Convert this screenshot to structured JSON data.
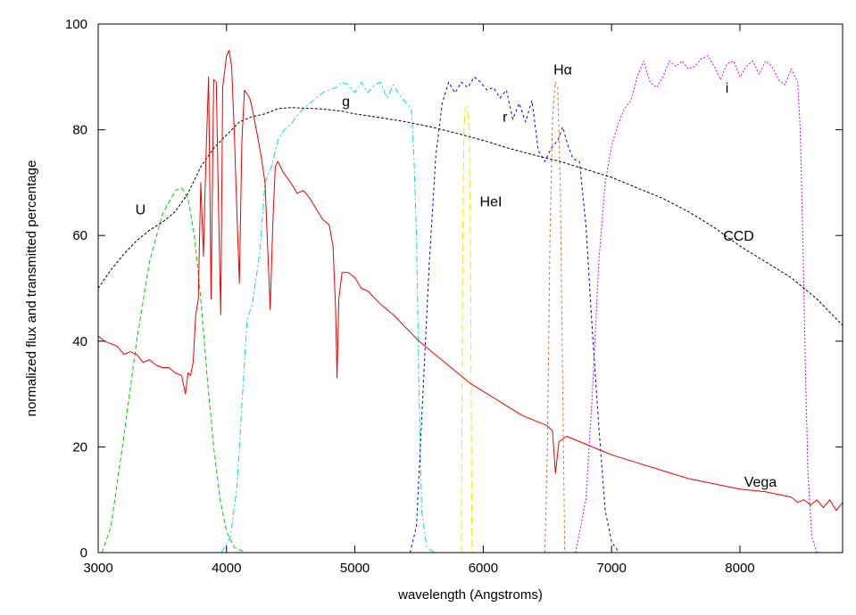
{
  "chart_data": {
    "type": "line",
    "title": "",
    "xlabel": "wavelength (Angstroms)",
    "ylabel": "normalized flux and transmitted percentage",
    "xlim": [
      3000,
      8800
    ],
    "ylim": [
      0,
      100
    ],
    "xticks": [
      3000,
      4000,
      5000,
      6000,
      7000,
      8000
    ],
    "yticks": [
      0,
      20,
      40,
      60,
      80,
      100
    ],
    "grid": false,
    "series": [
      {
        "name": "U",
        "label": "U",
        "color": "#00cc00",
        "dash": "5,3",
        "label_at": [
          3330,
          64
        ],
        "points": [
          [
            3030,
            0
          ],
          [
            3100,
            5
          ],
          [
            3200,
            22
          ],
          [
            3300,
            40
          ],
          [
            3400,
            55
          ],
          [
            3500,
            64
          ],
          [
            3600,
            68.5
          ],
          [
            3650,
            69
          ],
          [
            3700,
            67
          ],
          [
            3750,
            60
          ],
          [
            3800,
            48
          ],
          [
            3850,
            33
          ],
          [
            3900,
            20
          ],
          [
            3950,
            10
          ],
          [
            4000,
            4
          ],
          [
            4060,
            1
          ],
          [
            4150,
            0
          ]
        ]
      },
      {
        "name": "g",
        "label": "g",
        "color": "#00dddd",
        "dash": "7,3,2,3",
        "label_at": [
          4930,
          84.5
        ],
        "points": [
          [
            3960,
            0
          ],
          [
            4030,
            3
          ],
          [
            4080,
            12
          ],
          [
            4120,
            28
          ],
          [
            4160,
            44
          ],
          [
            4200,
            47
          ],
          [
            4260,
            57
          ],
          [
            4300,
            70
          ],
          [
            4350,
            73
          ],
          [
            4400,
            78
          ],
          [
            4450,
            80
          ],
          [
            4500,
            81
          ],
          [
            4560,
            83
          ],
          [
            4600,
            84
          ],
          [
            4650,
            85
          ],
          [
            4700,
            86
          ],
          [
            4750,
            87
          ],
          [
            4800,
            87.5
          ],
          [
            4850,
            88
          ],
          [
            4900,
            89
          ],
          [
            4950,
            88.5
          ],
          [
            5000,
            87
          ],
          [
            5050,
            89
          ],
          [
            5100,
            87
          ],
          [
            5150,
            88.5
          ],
          [
            5200,
            89
          ],
          [
            5250,
            86
          ],
          [
            5300,
            88.5
          ],
          [
            5350,
            86.5
          ],
          [
            5400,
            85
          ],
          [
            5440,
            84
          ],
          [
            5460,
            75
          ],
          [
            5480,
            60
          ],
          [
            5500,
            30
          ],
          [
            5520,
            8
          ],
          [
            5560,
            1
          ],
          [
            5620,
            0
          ]
        ]
      },
      {
        "name": "HeI",
        "label": "HeI",
        "color": "#eeee00",
        "dash": "9,4",
        "label_at": [
          6060,
          65.5
        ],
        "points": [
          [
            5830,
            0
          ],
          [
            5840,
            60
          ],
          [
            5850,
            80
          ],
          [
            5860,
            84
          ],
          [
            5875,
            84.5
          ],
          [
            5890,
            80
          ],
          [
            5900,
            60
          ],
          [
            5912,
            0
          ]
        ]
      },
      {
        "name": "r",
        "label": "r",
        "color": "#0000cc",
        "dash": "3,3",
        "label_at": [
          6170,
          81.5
        ],
        "points": [
          [
            5430,
            0
          ],
          [
            5480,
            5
          ],
          [
            5530,
            30
          ],
          [
            5580,
            55
          ],
          [
            5630,
            75
          ],
          [
            5680,
            85
          ],
          [
            5730,
            89
          ],
          [
            5780,
            87
          ],
          [
            5830,
            89
          ],
          [
            5880,
            88
          ],
          [
            5930,
            90
          ],
          [
            5980,
            89
          ],
          [
            6030,
            87.5
          ],
          [
            6080,
            88
          ],
          [
            6130,
            86
          ],
          [
            6180,
            87.5
          ],
          [
            6230,
            82
          ],
          [
            6280,
            85
          ],
          [
            6330,
            81.5
          ],
          [
            6380,
            85.5
          ],
          [
            6430,
            76
          ],
          [
            6480,
            74
          ],
          [
            6530,
            76.5
          ],
          [
            6580,
            78
          ],
          [
            6620,
            80.5
          ],
          [
            6660,
            77
          ],
          [
            6700,
            74.5
          ],
          [
            6750,
            74
          ],
          [
            6800,
            62
          ],
          [
            6850,
            42
          ],
          [
            6900,
            24
          ],
          [
            6950,
            8
          ],
          [
            7000,
            2
          ],
          [
            7060,
            0
          ]
        ]
      },
      {
        "name": "Halpha",
        "label": "Hα",
        "color": "#ee6622",
        "dash": "3,3",
        "label_at": [
          6620,
          90.5
        ],
        "points": [
          [
            6480,
            0
          ],
          [
            6500,
            20
          ],
          [
            6520,
            60
          ],
          [
            6540,
            82
          ],
          [
            6560,
            89
          ],
          [
            6580,
            88
          ],
          [
            6600,
            70
          ],
          [
            6620,
            30
          ],
          [
            6635,
            0
          ]
        ]
      },
      {
        "name": "i",
        "label": "i",
        "color": "#dd00dd",
        "dash": "2,2",
        "label_at": [
          7900,
          87
        ],
        "points": [
          [
            6720,
            0
          ],
          [
            6800,
            10
          ],
          [
            6850,
            30
          ],
          [
            6900,
            55
          ],
          [
            6950,
            70
          ],
          [
            7000,
            77
          ],
          [
            7050,
            81
          ],
          [
            7100,
            84
          ],
          [
            7150,
            85.5
          ],
          [
            7200,
            90
          ],
          [
            7250,
            93
          ],
          [
            7300,
            89
          ],
          [
            7350,
            88
          ],
          [
            7400,
            90
          ],
          [
            7450,
            93
          ],
          [
            7500,
            92
          ],
          [
            7550,
            93
          ],
          [
            7600,
            91.5
          ],
          [
            7650,
            92
          ],
          [
            7700,
            93.5
          ],
          [
            7750,
            94
          ],
          [
            7800,
            92
          ],
          [
            7850,
            89.5
          ],
          [
            7900,
            92.5
          ],
          [
            7950,
            93
          ],
          [
            8000,
            90
          ],
          [
            8050,
            92
          ],
          [
            8100,
            93
          ],
          [
            8150,
            90.5
          ],
          [
            8200,
            93
          ],
          [
            8250,
            92
          ],
          [
            8300,
            89.5
          ],
          [
            8350,
            88.5
          ],
          [
            8400,
            91.5
          ],
          [
            8450,
            89
          ],
          [
            8470,
            80
          ],
          [
            8490,
            60
          ],
          [
            8510,
            35
          ],
          [
            8530,
            15
          ],
          [
            8560,
            3
          ],
          [
            8600,
            0
          ]
        ]
      },
      {
        "name": "CCD",
        "label": "CCD",
        "color": "#000000",
        "dash": "3,2",
        "label_at": [
          7990,
          59
        ],
        "points": [
          [
            3000,
            50
          ],
          [
            3100,
            53.5
          ],
          [
            3200,
            56.5
          ],
          [
            3300,
            59
          ],
          [
            3400,
            61
          ],
          [
            3500,
            62.5
          ],
          [
            3600,
            64.5
          ],
          [
            3700,
            68
          ],
          [
            3800,
            73
          ],
          [
            3900,
            76.5
          ],
          [
            4000,
            79
          ],
          [
            4100,
            81.5
          ],
          [
            4200,
            82.5
          ],
          [
            4300,
            83
          ],
          [
            4400,
            84
          ],
          [
            4500,
            84.2
          ],
          [
            4600,
            84.1
          ],
          [
            4700,
            84
          ],
          [
            4800,
            83.8
          ],
          [
            4900,
            83.5
          ],
          [
            5000,
            83
          ],
          [
            5200,
            82.3
          ],
          [
            5400,
            81.5
          ],
          [
            5600,
            80.5
          ],
          [
            5800,
            79.3
          ],
          [
            6000,
            78
          ],
          [
            6200,
            76.5
          ],
          [
            6400,
            75.2
          ],
          [
            6600,
            74
          ],
          [
            6800,
            72.5
          ],
          [
            7000,
            71
          ],
          [
            7200,
            69
          ],
          [
            7400,
            67
          ],
          [
            7600,
            64.5
          ],
          [
            7800,
            61.5
          ],
          [
            8000,
            58
          ],
          [
            8200,
            55
          ],
          [
            8400,
            52
          ],
          [
            8600,
            48
          ],
          [
            8800,
            43
          ]
        ]
      },
      {
        "name": "Vega",
        "label": "Vega",
        "color": "#ee0000",
        "dash": "",
        "label_at": [
          8160,
          12.5
        ],
        "points": [
          [
            3000,
            41
          ],
          [
            3050,
            40
          ],
          [
            3100,
            39.5
          ],
          [
            3150,
            39
          ],
          [
            3200,
            37.5
          ],
          [
            3250,
            38
          ],
          [
            3300,
            37.5
          ],
          [
            3350,
            36
          ],
          [
            3400,
            36.5
          ],
          [
            3450,
            35.5
          ],
          [
            3500,
            35
          ],
          [
            3550,
            35
          ],
          [
            3600,
            34
          ],
          [
            3650,
            33.5
          ],
          [
            3680,
            30
          ],
          [
            3700,
            34
          ],
          [
            3720,
            33.5
          ],
          [
            3740,
            36
          ],
          [
            3760,
            45
          ],
          [
            3780,
            48
          ],
          [
            3790,
            60
          ],
          [
            3800,
            70
          ],
          [
            3820,
            56
          ],
          [
            3840,
            75
          ],
          [
            3860,
            90
          ],
          [
            3880,
            48
          ],
          [
            3900,
            89.5
          ],
          [
            3920,
            89
          ],
          [
            3940,
            62
          ],
          [
            3955,
            45
          ],
          [
            3970,
            88
          ],
          [
            4000,
            94
          ],
          [
            4020,
            95
          ],
          [
            4040,
            92
          ],
          [
            4060,
            80
          ],
          [
            4080,
            65
          ],
          [
            4100,
            51
          ],
          [
            4120,
            78
          ],
          [
            4140,
            87.5
          ],
          [
            4180,
            86
          ],
          [
            4200,
            84
          ],
          [
            4240,
            79
          ],
          [
            4270,
            75
          ],
          [
            4300,
            70
          ],
          [
            4320,
            58
          ],
          [
            4340,
            46
          ],
          [
            4360,
            62
          ],
          [
            4380,
            73
          ],
          [
            4400,
            74
          ],
          [
            4440,
            72
          ],
          [
            4500,
            70
          ],
          [
            4550,
            68
          ],
          [
            4600,
            68.5
          ],
          [
            4650,
            67
          ],
          [
            4700,
            65
          ],
          [
            4750,
            63
          ],
          [
            4800,
            62
          ],
          [
            4830,
            58
          ],
          [
            4850,
            46
          ],
          [
            4861,
            33
          ],
          [
            4875,
            48
          ],
          [
            4900,
            53
          ],
          [
            4950,
            53
          ],
          [
            5000,
            52
          ],
          [
            5050,
            50
          ],
          [
            5100,
            49.5
          ],
          [
            5200,
            47
          ],
          [
            5300,
            45
          ],
          [
            5400,
            42.5
          ],
          [
            5500,
            40
          ],
          [
            5600,
            38
          ],
          [
            5700,
            36
          ],
          [
            5800,
            34
          ],
          [
            5900,
            32
          ],
          [
            6000,
            30.5
          ],
          [
            6100,
            29
          ],
          [
            6200,
            27.5
          ],
          [
            6300,
            26
          ],
          [
            6400,
            25
          ],
          [
            6500,
            24
          ],
          [
            6540,
            23
          ],
          [
            6563,
            15
          ],
          [
            6590,
            21
          ],
          [
            6650,
            22
          ],
          [
            6700,
            21.5
          ],
          [
            6800,
            20.5
          ],
          [
            7000,
            18.5
          ],
          [
            7200,
            17
          ],
          [
            7400,
            15.5
          ],
          [
            7600,
            14
          ],
          [
            7800,
            13
          ],
          [
            8000,
            12
          ],
          [
            8200,
            11.5
          ],
          [
            8400,
            10.5
          ],
          [
            8450,
            9.5
          ],
          [
            8500,
            10
          ],
          [
            8550,
            9
          ],
          [
            8600,
            10
          ],
          [
            8650,
            8.5
          ],
          [
            8700,
            10
          ],
          [
            8750,
            8
          ],
          [
            8800,
            9.5
          ]
        ]
      }
    ]
  }
}
